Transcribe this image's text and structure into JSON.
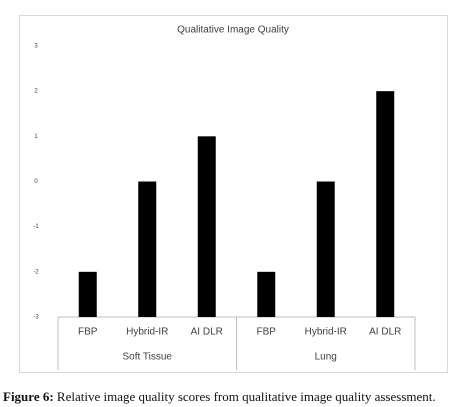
{
  "chart_data": {
    "type": "bar",
    "title": "Qualitative Image Quality",
    "groups": [
      {
        "name": "Soft Tissue",
        "categories": [
          "FBP",
          "Hybrid-IR",
          "AI DLR"
        ],
        "values": [
          -2,
          0,
          1
        ]
      },
      {
        "name": "Lung",
        "categories": [
          "FBP",
          "Hybrid-IR",
          "AI DLR"
        ],
        "values": [
          -2,
          0,
          2
        ]
      }
    ],
    "color": "#000000",
    "ylim": [
      -3,
      3
    ],
    "yticks": [
      -3,
      -2,
      -1,
      0,
      1,
      2,
      3
    ],
    "grid": false
  },
  "caption": {
    "label": "Figure 6:",
    "text": "Relative image quality scores from qualitative image quality assessment."
  }
}
